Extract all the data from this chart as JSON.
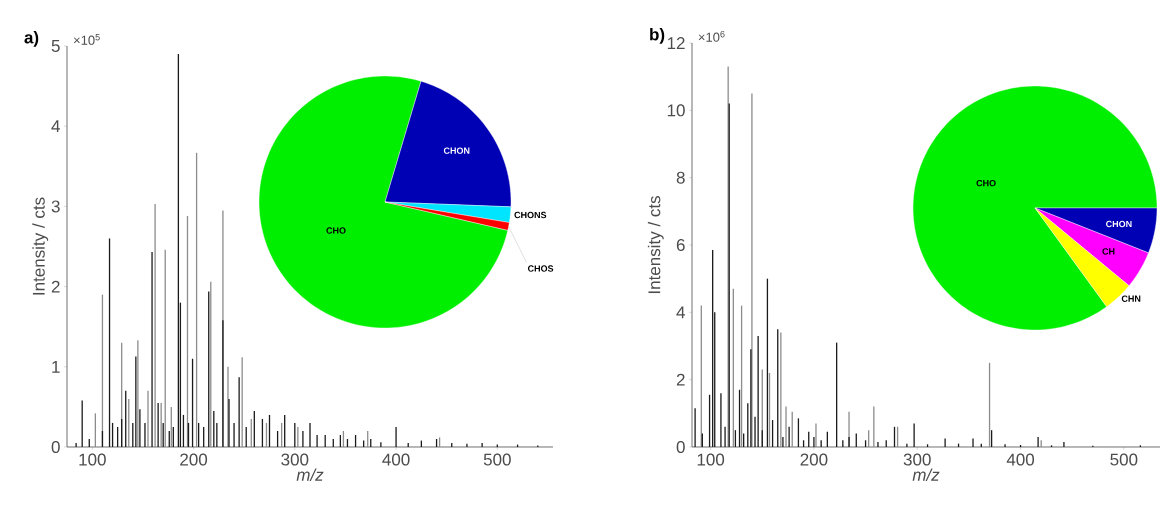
{
  "chart_data": [
    {
      "type": "bar",
      "title": "a)",
      "xlabel": "*m/z*",
      "ylabel": "Intensity / cts",
      "annotations": [
        "×10$^{5}$"
      ],
      "xlim": [
        75,
        555
      ],
      "xticks": [
        100,
        200,
        300,
        400,
        500
      ],
      "ylim": [
        0,
        5
      ],
      "yticks": [
        0,
        1,
        2,
        3,
        4,
        5
      ],
      "series": [
        {
          "color": "#1a1a1a",
          "x": [
            84,
            90,
            97,
            110,
            117,
            120,
            125,
            129,
            133,
            140,
            143,
            147,
            152,
            159,
            165,
            170,
            176,
            180,
            185,
            187,
            190,
            195,
            199,
            205,
            210,
            215,
            220,
            223,
            229,
            235,
            240,
            245,
            252,
            260,
            268,
            275,
            283,
            290,
            300,
            308,
            315,
            322,
            330,
            338,
            345,
            352,
            360,
            368,
            375,
            385,
            400,
            412,
            425,
            440,
            455,
            470,
            485,
            500,
            520,
            540
          ],
          "values": [
            0.05,
            0.58,
            0.1,
            0.2,
            2.6,
            0.3,
            0.25,
            0.35,
            0.7,
            0.3,
            1.13,
            0.47,
            0.3,
            2.43,
            0.55,
            0.3,
            0.2,
            0.25,
            4.9,
            1.8,
            0.4,
            0.3,
            1.1,
            0.3,
            0.25,
            1.94,
            0.45,
            0.3,
            1.58,
            0.6,
            0.3,
            0.87,
            0.25,
            0.45,
            0.35,
            0.4,
            0.2,
            0.4,
            0.3,
            0.2,
            0.3,
            0.15,
            0.15,
            0.1,
            0.15,
            0.1,
            0.15,
            0.08,
            0.1,
            0.06,
            0.25,
            0.05,
            0.08,
            0.1,
            0.05,
            0.04,
            0.05,
            0.03,
            0.03,
            0.02
          ]
        },
        {
          "color": "#8c8c8c",
          "x": [
            103,
            110,
            129,
            136,
            145,
            155,
            162,
            168,
            172,
            178,
            194,
            203,
            217,
            229,
            234,
            248,
            257,
            272,
            287,
            303,
            348,
            372,
            443
          ],
          "values": [
            0.42,
            1.9,
            1.3,
            0.6,
            1.33,
            0.7,
            3.03,
            0.55,
            2.46,
            0.5,
            2.88,
            3.67,
            2.06,
            2.95,
            1.0,
            1.12,
            0.35,
            0.3,
            0.3,
            0.25,
            0.2,
            0.2,
            0.12
          ]
        }
      ]
    },
    {
      "type": "pie",
      "categories": [
        "CHO",
        "CHON",
        "CHONS",
        "CHOS"
      ],
      "values": [
        76,
        21,
        2,
        1
      ],
      "colors": [
        "#00ee00",
        "#0000b4",
        "#00e5ff",
        "#ff0000"
      ]
    },
    {
      "type": "bar",
      "title": "b)",
      "xlabel": "*m/z*",
      "ylabel": "Intensity / cts",
      "annotations": [
        "×10$^{6}$"
      ],
      "xlim": [
        82,
        535
      ],
      "xticks": [
        100,
        200,
        300,
        400,
        500
      ],
      "ylim": [
        0,
        12
      ],
      "yticks": [
        0,
        2,
        4,
        6,
        8,
        10,
        12
      ],
      "series": [
        {
          "color": "#1a1a1a",
          "x": [
            85,
            92,
            99,
            102,
            104,
            110,
            114,
            118,
            124,
            128,
            132,
            136,
            139,
            143,
            146,
            150,
            155,
            160,
            165,
            170,
            176,
            185,
            190,
            195,
            200,
            207,
            213,
            222,
            228,
            234,
            241,
            250,
            262,
            270,
            278,
            290,
            297,
            310,
            327,
            340,
            354,
            362,
            372,
            385,
            400,
            417,
            430,
            442,
            470,
            516
          ],
          "values": [
            1.15,
            0.4,
            1.55,
            5.85,
            4.0,
            1.6,
            0.6,
            10.2,
            0.5,
            1.7,
            0.4,
            1.3,
            2.9,
            0.9,
            3.3,
            0.5,
            5.0,
            0.8,
            3.5,
            0.3,
            0.6,
            0.85,
            0.2,
            0.45,
            0.3,
            0.2,
            0.45,
            3.1,
            0.2,
            0.3,
            0.4,
            0.2,
            0.15,
            0.2,
            0.6,
            0.1,
            0.7,
            0.08,
            0.25,
            0.1,
            0.25,
            0.1,
            0.5,
            0.08,
            0.06,
            0.3,
            0.05,
            0.15,
            0.04,
            0.05
          ]
        },
        {
          "color": "#8c8c8c",
          "x": [
            91,
            117,
            122,
            130,
            140,
            150,
            157,
            168,
            173,
            179,
            202,
            234,
            253,
            258,
            281,
            370,
            420
          ],
          "values": [
            4.2,
            11.3,
            4.7,
            4.2,
            10.5,
            2.3,
            2.2,
            3.4,
            1.2,
            1.05,
            0.7,
            1.05,
            0.5,
            1.2,
            0.6,
            2.5,
            0.2
          ]
        }
      ]
    },
    {
      "type": "pie",
      "categories": [
        "CHO",
        "CHON",
        "CH",
        "CHN"
      ],
      "values": [
        85,
        6,
        5,
        4
      ],
      "colors": [
        "#00ee00",
        "#0000b4",
        "#ff00ff",
        "#ffff00"
      ]
    }
  ]
}
